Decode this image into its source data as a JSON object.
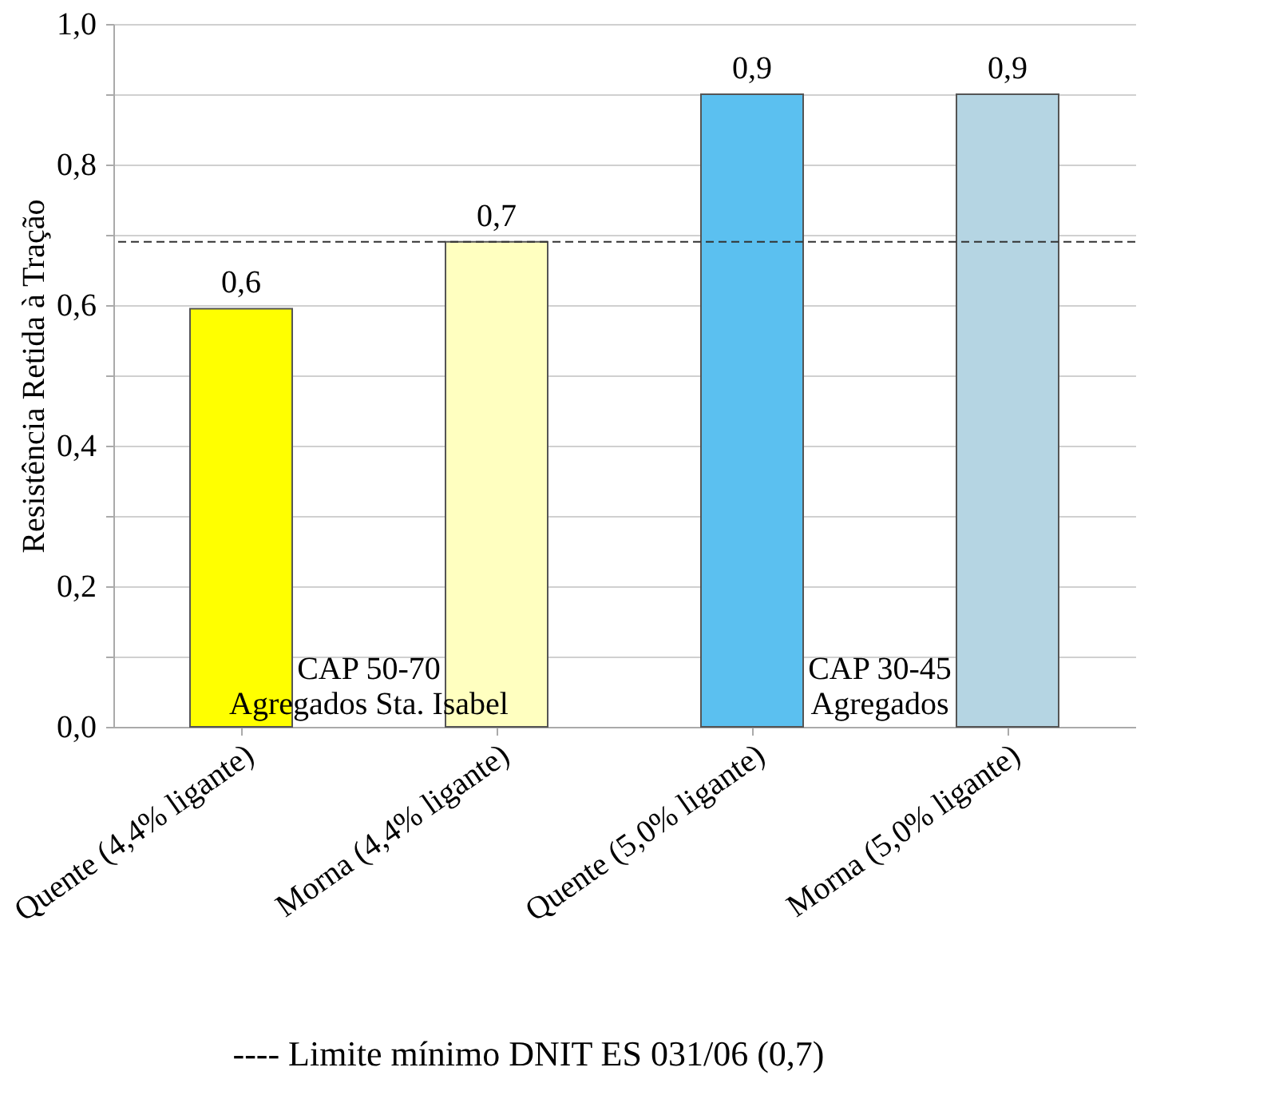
{
  "chart_data": {
    "type": "bar",
    "ylabel": "Resistência Retida à Tração",
    "categories": [
      "Quente (4,4% ligante)",
      "Morna (4,4% ligante)",
      "Quente (5,0% ligante)",
      "Morna (5,0% ligante)"
    ],
    "values": [
      0.595,
      0.69,
      0.9,
      0.9
    ],
    "colors": [
      "#ffff00",
      "#ffffc0",
      "#5bc0f0",
      "#b5d5e3"
    ],
    "value_labels": [
      "0,6",
      "0,7",
      "0,9",
      "0,9"
    ],
    "ylim": [
      0,
      1
    ],
    "yticks": [
      {
        "value": 0,
        "label": "0,0"
      },
      {
        "value": 0.1,
        "label": null
      },
      {
        "value": 0.2,
        "label": "0,2"
      },
      {
        "value": 0.3,
        "label": null
      },
      {
        "value": 0.4,
        "label": "0,4"
      },
      {
        "value": 0.5,
        "label": null
      },
      {
        "value": 0.6,
        "label": "0,6"
      },
      {
        "value": 0.7,
        "label": null
      },
      {
        "value": 0.8,
        "label": "0,8"
      },
      {
        "value": 0.9,
        "label": null
      },
      {
        "value": 1,
        "label": "1,0"
      }
    ],
    "grid": "y",
    "ref_lines": [
      {
        "axis": "y",
        "value": 0.69,
        "color": "#333333",
        "line_style": "dashed"
      }
    ],
    "annotations": [
      "CAP 50-70\nAgregados Sta. Isabel",
      "CAP 30-45\nAgregados",
      "---- Limite mínimo DNIT ES 031/06 (0,7)"
    ]
  }
}
